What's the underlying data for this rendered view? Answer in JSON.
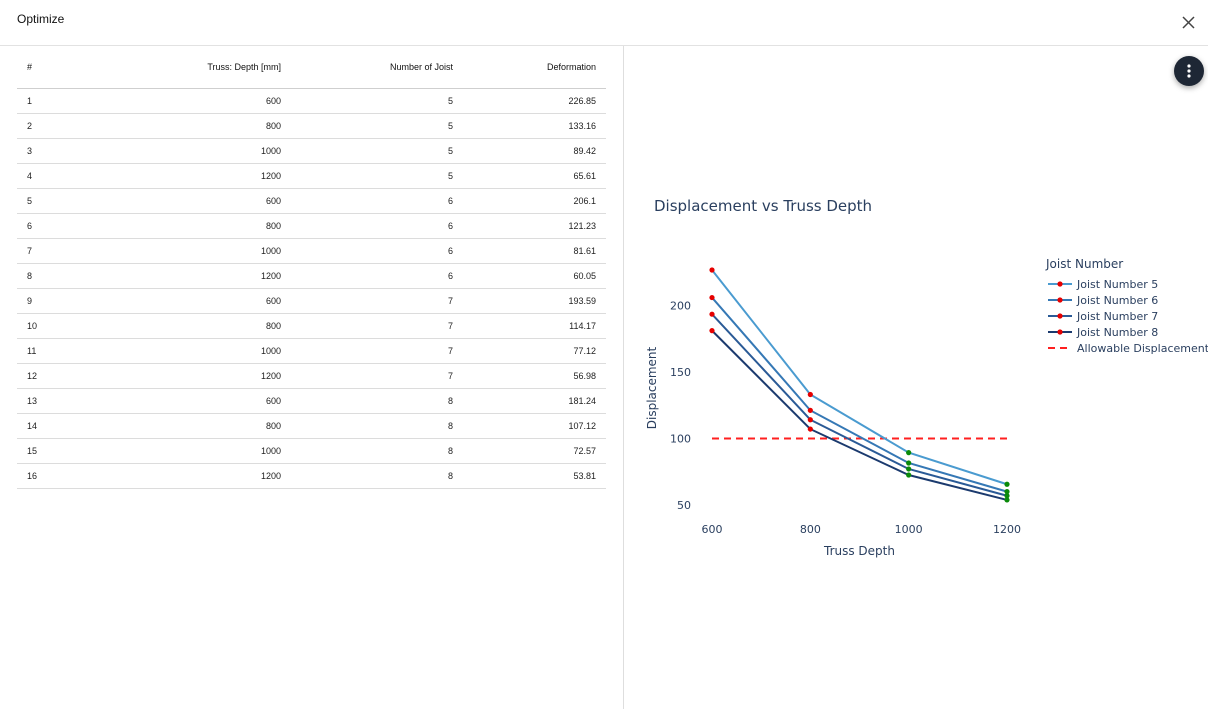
{
  "dialog": {
    "title": "Optimize",
    "close_icon": "close-icon"
  },
  "table": {
    "headers": [
      "#",
      "Truss: Depth [mm]",
      "Number of Joist",
      "Deformation"
    ],
    "rows": [
      [
        "1",
        "600",
        "5",
        "226.85"
      ],
      [
        "2",
        "800",
        "5",
        "133.16"
      ],
      [
        "3",
        "1000",
        "5",
        "89.42"
      ],
      [
        "4",
        "1200",
        "5",
        "65.61"
      ],
      [
        "5",
        "600",
        "6",
        "206.1"
      ],
      [
        "6",
        "800",
        "6",
        "121.23"
      ],
      [
        "7",
        "1000",
        "6",
        "81.61"
      ],
      [
        "8",
        "1200",
        "6",
        "60.05"
      ],
      [
        "9",
        "600",
        "7",
        "193.59"
      ],
      [
        "10",
        "800",
        "7",
        "114.17"
      ],
      [
        "11",
        "1000",
        "7",
        "77.12"
      ],
      [
        "12",
        "1200",
        "7",
        "56.98"
      ],
      [
        "13",
        "600",
        "8",
        "181.24"
      ],
      [
        "14",
        "800",
        "8",
        "107.12"
      ],
      [
        "15",
        "1000",
        "8",
        "72.57"
      ],
      [
        "16",
        "1200",
        "8",
        "53.81"
      ]
    ]
  },
  "menu_icon": "more-vertical-icon",
  "chart_data": {
    "type": "line",
    "title": "Displacement vs Truss Depth",
    "xlabel": "Truss Depth",
    "ylabel": "Displacement",
    "x": [
      600,
      800,
      1000,
      1200
    ],
    "xlim": [
      600,
      1200
    ],
    "ylim": [
      50,
      226.85
    ],
    "xticks": [
      600,
      800,
      1000,
      1200
    ],
    "yticks": [
      50,
      100,
      150,
      200
    ],
    "grid": false,
    "legend_title": "Joist Number",
    "legend_position": "right",
    "series": [
      {
        "name": "Joist Number 5",
        "values": [
          226.85,
          133.16,
          89.42,
          65.61
        ],
        "color": "#4a9bd0"
      },
      {
        "name": "Joist Number 6",
        "values": [
          206.1,
          121.23,
          81.61,
          60.05
        ],
        "color": "#3578b5"
      },
      {
        "name": "Joist Number 7",
        "values": [
          193.59,
          114.17,
          77.12,
          56.98
        ],
        "color": "#2a5a96"
      },
      {
        "name": "Joist Number 8",
        "values": [
          181.24,
          107.12,
          72.57,
          53.81
        ],
        "color": "#1b3a6e"
      }
    ],
    "reference_line": {
      "name": "Allowable Displacement",
      "value": 100,
      "color": "#ff2020",
      "style": "dashed"
    },
    "marker_colors": {
      "above_limit": "#e60000",
      "below_limit": "#0a8a0a"
    }
  }
}
